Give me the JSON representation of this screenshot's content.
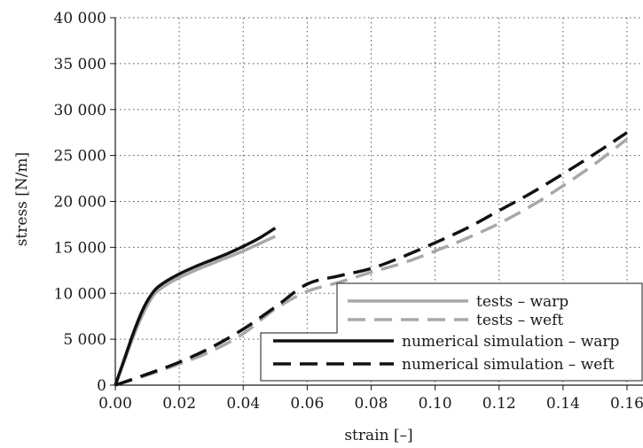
{
  "chart_data": {
    "type": "line",
    "xlabel": "strain [–]",
    "ylabel": "stress [N/m]",
    "xlim": [
      0,
      0.165
    ],
    "ylim": [
      0,
      40000
    ],
    "x_ticks": [
      0,
      0.02,
      0.04,
      0.06,
      0.08,
      0.1,
      0.12,
      0.14,
      0.16
    ],
    "x_tick_labels": [
      "0.00",
      "0.02",
      "0.04",
      "0.06",
      "0.08",
      "0.10",
      "0.12",
      "0.14",
      "0.16"
    ],
    "y_ticks": [
      0,
      5000,
      10000,
      15000,
      20000,
      25000,
      30000,
      35000,
      40000
    ],
    "y_tick_labels": [
      "0",
      "5 000",
      "10 000",
      "15 000",
      "20 000",
      "25 000",
      "30 000",
      "35 000",
      "40 000"
    ],
    "grid": true,
    "legend_position": "bottom-right",
    "series": [
      {
        "name": "tests – warp",
        "color": "#a8a8a8",
        "dash": "solid",
        "x": [
          0,
          0.003,
          0.006,
          0.009,
          0.012,
          0.015,
          0.02,
          0.025,
          0.03,
          0.035,
          0.04,
          0.045,
          0.05
        ],
        "y": [
          0,
          2800,
          5600,
          8000,
          9800,
          10700,
          11700,
          12500,
          13200,
          13900,
          14600,
          15400,
          16200
        ]
      },
      {
        "name": "tests – weft",
        "color": "#a8a8a8",
        "dash": "dashed",
        "x": [
          0,
          0.01,
          0.02,
          0.03,
          0.04,
          0.05,
          0.06,
          0.07,
          0.08,
          0.09,
          0.1,
          0.11,
          0.12,
          0.13,
          0.14,
          0.15,
          0.16
        ],
        "y": [
          0,
          1100,
          2300,
          3700,
          5600,
          8300,
          10200,
          11200,
          12300,
          13300,
          14600,
          16000,
          17600,
          19500,
          21700,
          24100,
          26800
        ]
      },
      {
        "name": "numerical simulation – warp",
        "color": "#111111",
        "dash": "solid",
        "x": [
          0,
          0.003,
          0.006,
          0.009,
          0.012,
          0.015,
          0.02,
          0.025,
          0.03,
          0.035,
          0.04,
          0.045,
          0.05
        ],
        "y": [
          0,
          3000,
          6000,
          8500,
          10200,
          11100,
          12100,
          12900,
          13600,
          14300,
          15100,
          16000,
          17100
        ]
      },
      {
        "name": "numerical simulation – weft",
        "color": "#111111",
        "dash": "dashed",
        "x": [
          0,
          0.01,
          0.02,
          0.03,
          0.04,
          0.05,
          0.06,
          0.07,
          0.08,
          0.09,
          0.1,
          0.11,
          0.12,
          0.13,
          0.14,
          0.15,
          0.16
        ],
        "y": [
          0,
          1200,
          2500,
          4100,
          6100,
          8500,
          11000,
          11900,
          12700,
          14000,
          15500,
          17100,
          19000,
          20900,
          23000,
          25200,
          27500
        ]
      }
    ]
  }
}
